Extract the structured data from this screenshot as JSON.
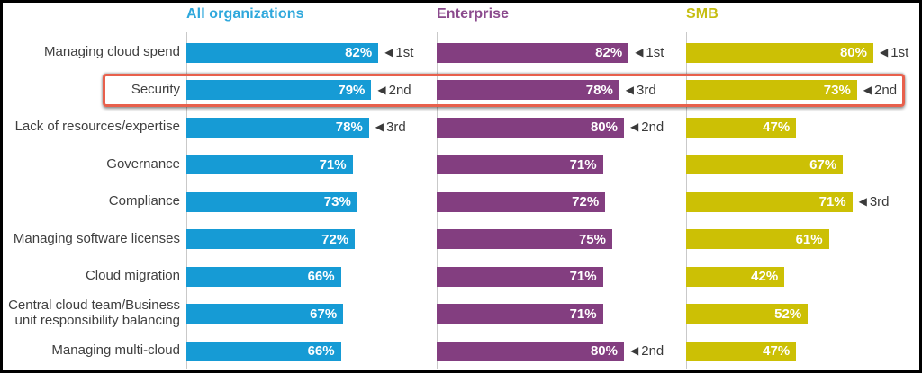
{
  "chart_data": {
    "type": "bar",
    "orientation": "horizontal",
    "title": "",
    "xlabel": "",
    "ylabel": "",
    "xlim": [
      0,
      100
    ],
    "value_suffix": "%",
    "rank_marker": "◀",
    "grid": false,
    "categories": [
      "Managing cloud spend",
      "Security",
      "Lack of resources/expertise",
      "Governance",
      "Compliance",
      "Managing software licenses",
      "Cloud migration",
      "Central cloud team/Business unit responsibility balancing",
      "Managing multi-cloud"
    ],
    "series": [
      {
        "name": "All organizations",
        "bar_color": "#169bd5",
        "header_color": "#2fa8dc",
        "values": [
          82,
          79,
          78,
          71,
          73,
          72,
          66,
          67,
          66
        ],
        "ranks": [
          "1st",
          "2nd",
          "3rd",
          null,
          null,
          null,
          null,
          null,
          null
        ]
      },
      {
        "name": "Enterprise",
        "bar_color": "#833e80",
        "header_color": "#8b4a8d",
        "values": [
          82,
          78,
          80,
          71,
          72,
          75,
          71,
          71,
          80
        ],
        "ranks": [
          "1st",
          "3rd",
          "2nd",
          null,
          null,
          null,
          null,
          null,
          "2nd"
        ]
      },
      {
        "name": "SMB",
        "bar_color": "#ccc005",
        "header_color": "#c6be11",
        "values": [
          80,
          73,
          47,
          67,
          71,
          61,
          42,
          52,
          47
        ],
        "ranks": [
          "1st",
          "2nd",
          null,
          null,
          "3rd",
          null,
          null,
          null,
          null
        ]
      }
    ],
    "highlight": {
      "category": "Security",
      "border_color": "#e8604c"
    },
    "label_color": "#3f3f3f"
  }
}
